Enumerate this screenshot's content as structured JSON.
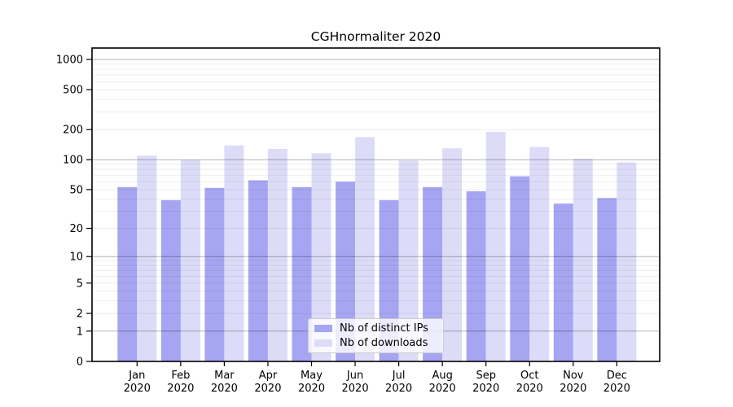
{
  "chart_data": {
    "type": "bar",
    "title": "CGHnormaliter 2020",
    "categories": [
      "Jan",
      "Feb",
      "Mar",
      "Apr",
      "May",
      "Jun",
      "Jul",
      "Aug",
      "Sep",
      "Oct",
      "Nov",
      "Dec"
    ],
    "year_label": "2020",
    "series": [
      {
        "name": "Nb of distinct IPs",
        "color": "#a5a5f2",
        "values": [
          53,
          39,
          52,
          62,
          53,
          60,
          39,
          53,
          48,
          68,
          36,
          41
        ]
      },
      {
        "name": "Nb of downloads",
        "color": "#dcdcf8",
        "values": [
          110,
          99,
          139,
          128,
          116,
          168,
          98,
          130,
          190,
          134,
          102,
          94
        ]
      }
    ],
    "yticks": [
      0,
      1,
      2,
      5,
      10,
      20,
      50,
      100,
      200,
      500,
      1000
    ],
    "major_grid_values": [
      1,
      10,
      100,
      1000
    ],
    "scale": "log10(1+x)",
    "ylim": [
      0,
      1300
    ],
    "grid": true,
    "legend_position": "lower-center",
    "colors": {
      "major_grid": "rgba(0,0,0,0.30)",
      "minor_grid": "rgba(0,0,0,0.07)",
      "spine": "#000000",
      "text": "#000000"
    }
  }
}
